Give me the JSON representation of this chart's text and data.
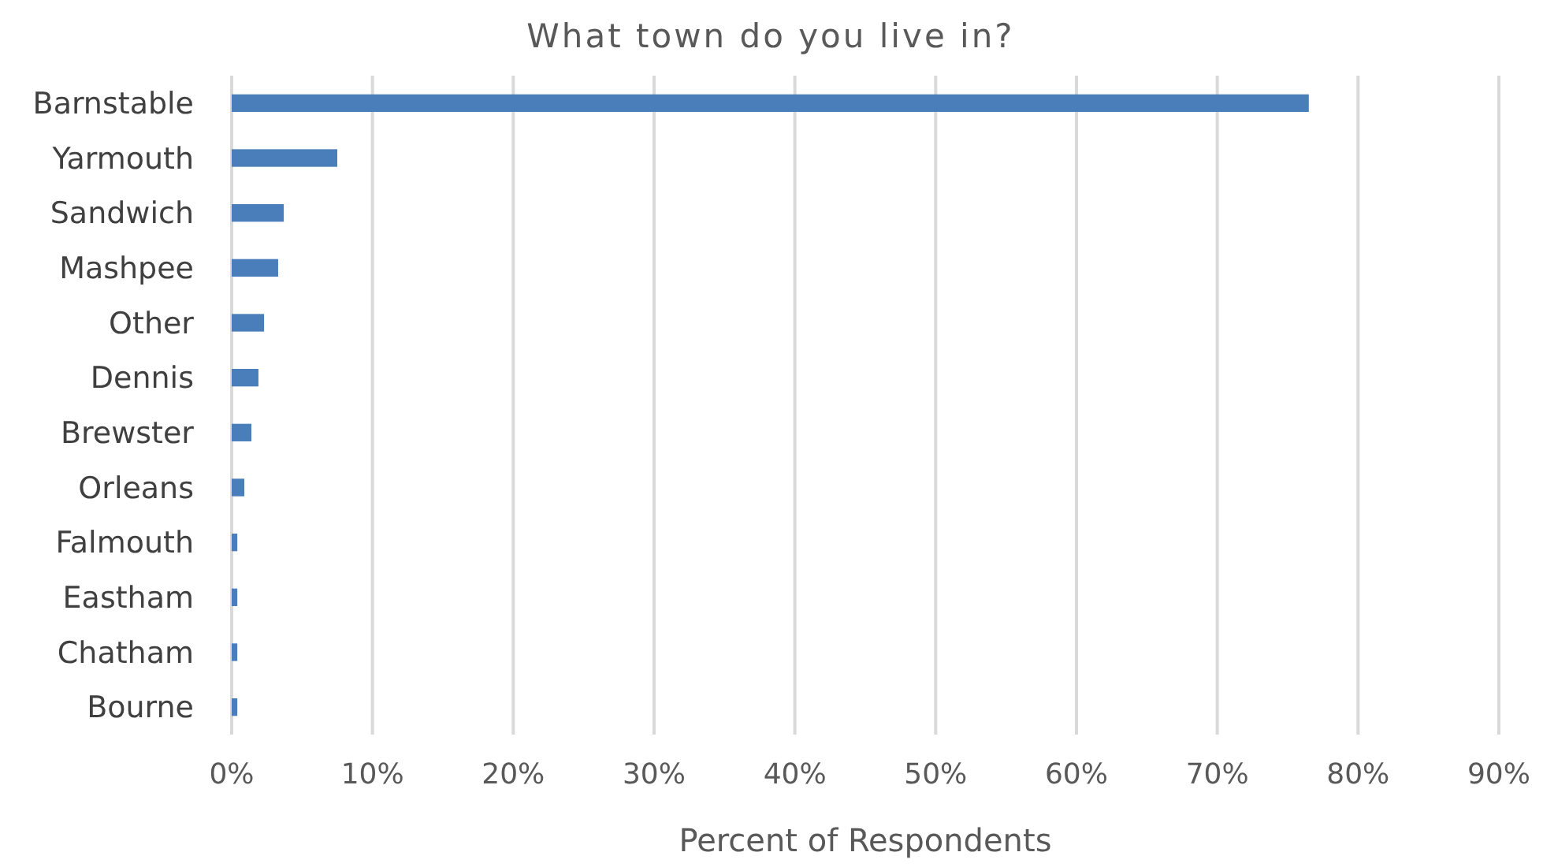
{
  "chart_data": {
    "type": "bar",
    "orientation": "horizontal",
    "title": "What town do you live in?",
    "xlabel": "Percent of Respondents",
    "categories": [
      "Barnstable",
      "Yarmouth",
      "Sandwich",
      "Mashpee",
      "Other",
      "Dennis",
      "Brewster",
      "Orleans",
      "Falmouth",
      "Eastham",
      "Chatham",
      "Bourne"
    ],
    "values": [
      76.5,
      7.5,
      3.7,
      3.3,
      2.3,
      1.9,
      1.4,
      0.9,
      0.4,
      0.4,
      0.4,
      0.4
    ],
    "color": "#4a7ebb",
    "xlim": [
      0,
      90
    ],
    "xticks": [
      {
        "value": 0,
        "label": "0%"
      },
      {
        "value": 10,
        "label": "10%"
      },
      {
        "value": 20,
        "label": "20%"
      },
      {
        "value": 30,
        "label": "30%"
      },
      {
        "value": 40,
        "label": "40%"
      },
      {
        "value": 50,
        "label": "50%"
      },
      {
        "value": 60,
        "label": "60%"
      },
      {
        "value": 70,
        "label": "70%"
      },
      {
        "value": 80,
        "label": "80%"
      },
      {
        "value": 90,
        "label": "90%"
      }
    ],
    "grid": "x"
  }
}
